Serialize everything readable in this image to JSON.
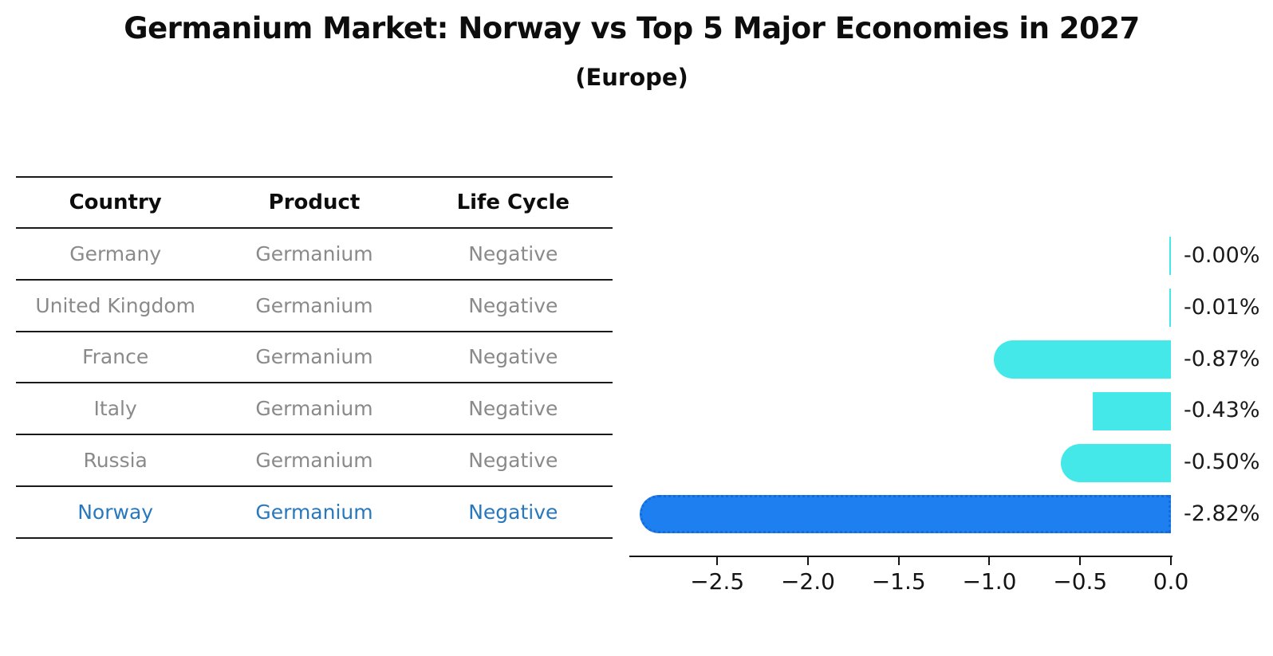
{
  "title": "Germanium Market: Norway vs Top 5 Major Economies in 2027",
  "subtitle": "(Europe)",
  "table": {
    "headers": [
      "Country",
      "Product",
      "Life Cycle"
    ],
    "rows": [
      {
        "country": "Germany",
        "product": "Germanium",
        "life_cycle": "Negative",
        "highlight": false
      },
      {
        "country": "United Kingdom",
        "product": "Germanium",
        "life_cycle": "Negative",
        "highlight": false
      },
      {
        "country": "France",
        "product": "Germanium",
        "life_cycle": "Negative",
        "highlight": false
      },
      {
        "country": "Italy",
        "product": "Germanium",
        "life_cycle": "Negative",
        "highlight": false
      },
      {
        "country": "Russia",
        "product": "Germanium",
        "life_cycle": "Negative",
        "highlight": false
      },
      {
        "country": "Norway",
        "product": "Germanium",
        "life_cycle": "Negative",
        "highlight": true
      }
    ]
  },
  "chart_data": {
    "type": "bar",
    "orientation": "horizontal",
    "categories": [
      "Germany",
      "United Kingdom",
      "France",
      "Italy",
      "Russia",
      "Norway"
    ],
    "values": [
      -0.0,
      -0.01,
      -0.87,
      -0.43,
      -0.5,
      -2.82
    ],
    "value_labels": [
      "-0.00%",
      "-0.01%",
      "-0.87%",
      "-0.43%",
      "-0.50%",
      "-2.82%"
    ],
    "highlight_index": 5,
    "xlim": [
      -2.98,
      0
    ],
    "x_ticks": [
      {
        "value": -2.5,
        "label": "−2.5"
      },
      {
        "value": -2.0,
        "label": "−2.0"
      },
      {
        "value": -1.5,
        "label": "−1.5"
      },
      {
        "value": -1.0,
        "label": "−1.0"
      },
      {
        "value": -0.5,
        "label": "−0.5"
      },
      {
        "value": 0.0,
        "label": "0.0"
      }
    ],
    "rounded_caps": [
      false,
      false,
      true,
      false,
      true,
      true
    ],
    "bar_color": "#44e8e8",
    "highlight_bar_color": "#1e80f0",
    "highlight_text_color": "#2878be",
    "grid": false,
    "legend": "none"
  }
}
